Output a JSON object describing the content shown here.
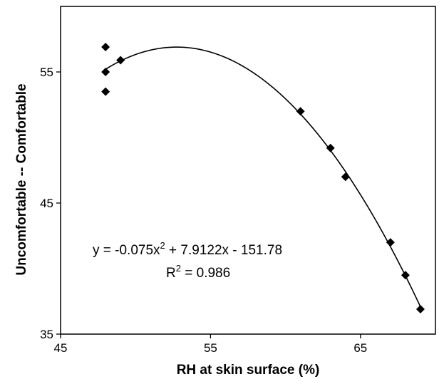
{
  "chart_data": {
    "type": "scatter",
    "title": "",
    "xlabel": "RH at skin surface (%)",
    "ylabel": "Uncomfortable -- Comfortable",
    "xlim": [
      45,
      70
    ],
    "ylim": [
      35,
      60
    ],
    "xticks": [
      "45",
      "55",
      "65"
    ],
    "yticks": [
      "35",
      "45",
      "55"
    ],
    "grid": false,
    "legend": "none",
    "series": [
      {
        "marker": "diamond",
        "color": "#000000",
        "points": [
          {
            "x": 48,
            "y": 56.9
          },
          {
            "x": 48,
            "y": 55.0
          },
          {
            "x": 48,
            "y": 53.5
          },
          {
            "x": 49,
            "y": 55.9
          },
          {
            "x": 61,
            "y": 52.0
          },
          {
            "x": 63,
            "y": 49.2
          },
          {
            "x": 64,
            "y": 47.0
          },
          {
            "x": 67,
            "y": 42.0
          },
          {
            "x": 68,
            "y": 39.5
          },
          {
            "x": 69,
            "y": 36.9
          }
        ]
      }
    ],
    "trendline": {
      "type": "polynomial",
      "coefficients": {
        "a": -0.075,
        "b": 7.9122,
        "c": -151.78
      },
      "x_range": [
        48,
        69
      ],
      "equation_line1_main": "y = -0.075x",
      "equation_line1_sup": "2",
      "equation_line1_rest": " + 7.9122x - 151.78",
      "r2_prefix": "R",
      "r2_sup": "2",
      "r2_rest": " = 0.986"
    }
  }
}
